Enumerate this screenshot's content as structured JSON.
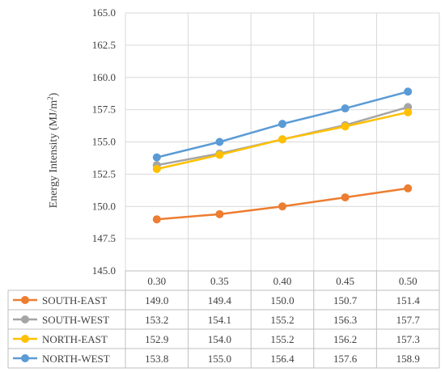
{
  "chart_data": {
    "type": "line",
    "title": "",
    "xlabel": "",
    "ylabel": "Energy Intensity (MJ/m²)",
    "ylabel_main": "Energy Intensity (MJ/m",
    "ylabel_sup": "2",
    "ylabel_tail": ")",
    "ylim": [
      145.0,
      165.0
    ],
    "yticks": [
      "145.0",
      "147.5",
      "150.0",
      "152.5",
      "155.0",
      "157.5",
      "160.0",
      "162.5",
      "165.0"
    ],
    "grid": true,
    "legend": "data-table",
    "categories": [
      "0.30",
      "0.35",
      "0.40",
      "0.45",
      "0.50"
    ],
    "series": [
      {
        "name": "SOUTH-EAST",
        "color": "#ED7D31",
        "values": [
          149.0,
          149.4,
          150.0,
          150.7,
          151.4
        ],
        "labels": [
          "149.0",
          "149.4",
          "150.0",
          "150.7",
          "151.4"
        ]
      },
      {
        "name": "SOUTH-WEST",
        "color": "#A5A5A5",
        "values": [
          153.2,
          154.1,
          155.2,
          156.3,
          157.7
        ],
        "labels": [
          "153.2",
          "154.1",
          "155.2",
          "156.3",
          "157.7"
        ]
      },
      {
        "name": "NORTH-EAST",
        "color": "#FFC000",
        "values": [
          152.9,
          154.0,
          155.2,
          156.2,
          157.3
        ],
        "labels": [
          "152.9",
          "154.0",
          "155.2",
          "156.2",
          "157.3"
        ]
      },
      {
        "name": "NORTH-WEST",
        "color": "#5B9BD5",
        "values": [
          153.8,
          155.0,
          156.4,
          157.6,
          158.9
        ],
        "labels": [
          "153.8",
          "155.0",
          "156.4",
          "157.6",
          "158.9"
        ]
      }
    ]
  }
}
